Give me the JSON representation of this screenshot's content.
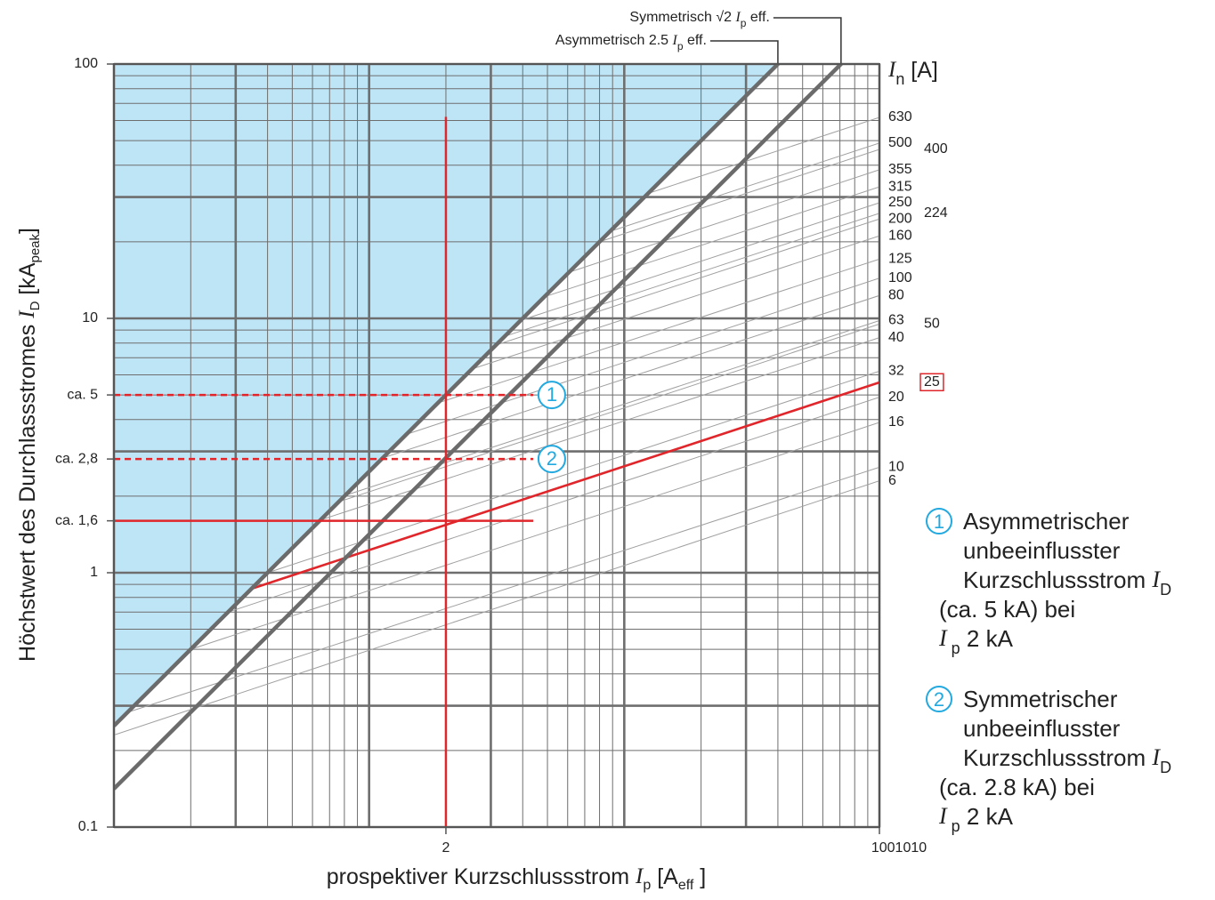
{
  "chart_data": {
    "type": "loglog",
    "y_label": [
      "Höchstwert des Durchlassstromes ",
      {
        "text": "I",
        "style": "italic"
      },
      {
        "text": "D",
        "style": "sub"
      },
      " [kA",
      {
        "text": "peak",
        "style": "sub"
      },
      "]"
    ],
    "x_label": [
      "prospektiver Kurzschlussstrom ",
      {
        "text": "I",
        "style": "italic"
      },
      {
        "text": "p",
        "style": "sub"
      },
      " [A",
      {
        "text": "eff",
        "style": "sub"
      },
      " ]"
    ],
    "right_label": [
      {
        "text": "I",
        "style": "italic"
      },
      {
        "text": "n",
        "style": "sub"
      },
      " [A]"
    ],
    "xlim": [
      0.1,
      100
    ],
    "ylim": [
      0.1,
      100
    ],
    "log_scale": true,
    "xticks": [
      2,
      {
        "value": 100,
        "label": "1001010"
      }
    ],
    "yticks": [
      100,
      10,
      1,
      0.1,
      {
        "value": 5,
        "label": "ca. 5"
      },
      {
        "value": 2.8,
        "label": "ca. 2,8"
      },
      {
        "value": 1.6,
        "label": "ca. 1,6"
      }
    ],
    "xgrid": [
      0.1,
      0.2,
      0.3,
      0.4,
      0.5,
      0.6,
      0.7,
      0.8,
      0.9,
      1,
      2,
      3,
      4,
      5,
      6,
      7,
      8,
      9,
      10,
      20,
      30,
      40,
      50,
      60,
      70,
      80,
      90,
      100
    ],
    "ygrid": [
      0.1,
      0.2,
      0.3,
      0.4,
      0.5,
      0.6,
      0.7,
      0.8,
      0.9,
      1,
      2,
      3,
      4,
      5,
      6,
      7,
      8,
      9,
      10,
      20,
      30,
      40,
      50,
      60,
      70,
      80,
      90,
      100
    ],
    "reference_lines": [
      {
        "label": [
          "Symmetrisch ",
          "√2 ",
          {
            "text": "I",
            "style": "italic"
          },
          {
            "text": "p",
            "style": "sub"
          },
          " eff."
        ],
        "factor": 1.41421,
        "color": "#6b6b6b"
      },
      {
        "label": [
          "Asymmetrisch ",
          "2.5 ",
          {
            "text": "I",
            "style": "italic"
          },
          {
            "text": "p",
            "style": "sub"
          },
          " eff."
        ],
        "factor": 2.5,
        "color": "#6b6b6b",
        "fill_above": "#bde5f6"
      }
    ],
    "series": [
      {
        "name": "630",
        "color": "#a0a0a0",
        "x": [
          12.4,
          100
        ],
        "values": [
          31,
          61.7
        ]
      },
      {
        "name": "500",
        "color": "#a0a0a0",
        "x": [
          8.7,
          100
        ],
        "values": [
          21.9,
          48.9
        ]
      },
      {
        "name": "400",
        "color": "#a0a0a0",
        "x": [
          8.0,
          100
        ],
        "values": [
          20,
          46.2
        ]
      },
      {
        "name": "355",
        "color": "#a0a0a0",
        "x": [
          6.1,
          100
        ],
        "values": [
          15.2,
          38.4
        ]
      },
      {
        "name": "315",
        "color": "#a0a0a0",
        "x": [
          4.8,
          100
        ],
        "values": [
          12.1,
          32.9
        ]
      },
      {
        "name": "250",
        "color": "#a0a0a0",
        "x": [
          3.9,
          100
        ],
        "values": [
          9.8,
          28.5
        ]
      },
      {
        "name": "224",
        "color": "#a0a0a0",
        "x": [
          3.4,
          100
        ],
        "values": [
          8.5,
          25.9
        ]
      },
      {
        "name": "200",
        "color": "#a0a0a0",
        "x": [
          3.2,
          100
        ],
        "values": [
          7.9,
          24.6
        ]
      },
      {
        "name": "160",
        "color": "#a0a0a0",
        "x": [
          2.5,
          100
        ],
        "values": [
          6.3,
          21.1
        ]
      },
      {
        "name": "125",
        "color": "#a0a0a0",
        "x": [
          1.8,
          100
        ],
        "values": [
          4.6,
          17.1
        ]
      },
      {
        "name": "100",
        "color": "#a0a0a0",
        "x": [
          1.4,
          100
        ],
        "values": [
          3.5,
          14.4
        ]
      },
      {
        "name": "80",
        "color": "#a0a0a0",
        "x": [
          1.1,
          100
        ],
        "values": [
          2.8,
          12.3
        ]
      },
      {
        "name": "63",
        "color": "#a0a0a0",
        "x": [
          0.79,
          100
        ],
        "values": [
          2.0,
          9.8
        ]
      },
      {
        "name": "50",
        "color": "#a0a0a0",
        "x": [
          0.76,
          100
        ],
        "values": [
          1.9,
          9.5
        ]
      },
      {
        "name": "40",
        "color": "#a0a0a0",
        "x": [
          0.63,
          100
        ],
        "values": [
          1.6,
          8.4
        ]
      },
      {
        "name": "32",
        "color": "#a0a0a0",
        "x": [
          0.4,
          100
        ],
        "values": [
          1.0,
          6.2
        ]
      },
      {
        "name": "25",
        "color": "#e0262b",
        "x": [
          0.34,
          100
        ],
        "values": [
          0.86,
          5.6
        ],
        "boxed": true
      },
      {
        "name": "20",
        "color": "#a0a0a0",
        "x": [
          0.28,
          100
        ],
        "values": [
          0.7,
          4.9
        ]
      },
      {
        "name": "16",
        "color": "#a0a0a0",
        "x": [
          0.2,
          100
        ],
        "values": [
          0.5,
          3.9
        ]
      },
      {
        "name": "10",
        "color": "#a0a0a0",
        "x": [
          0.11,
          100
        ],
        "values": [
          0.28,
          2.6
        ]
      },
      {
        "name": "6",
        "color": "#a0a0a0",
        "x": [
          0.1,
          100
        ],
        "values": [
          0.23,
          2.3
        ]
      }
    ],
    "guides": [
      {
        "orientation": "vertical",
        "at": 2,
        "from": 0.1,
        "to": 62,
        "dashed": false,
        "color": "#e0262b"
      },
      {
        "orientation": "horizontal",
        "at": 1.6,
        "from": 0.1,
        "to": 4.4,
        "dashed": false,
        "color": "#e0262b"
      },
      {
        "orientation": "horizontal",
        "at": 5,
        "from": 0.1,
        "to": 4.4,
        "dashed": true,
        "color": "#e0262b"
      },
      {
        "orientation": "horizontal",
        "at": 2.8,
        "from": 0.1,
        "to": 4.4,
        "dashed": true,
        "color": "#e0262b"
      }
    ],
    "markers": [
      {
        "label": "1",
        "x": 5.2,
        "y": 5
      },
      {
        "label": "2",
        "x": 5.2,
        "y": 2.8
      }
    ],
    "marker_color": "#22a9e0",
    "notes": [
      {
        "marker": "1",
        "lines": [
          [
            "Asymmetrischer"
          ],
          [
            "unbeeinflusster"
          ],
          [
            "Kurzschlussstrom ",
            {
              "text": "I",
              "style": "italic"
            },
            {
              "text": "D",
              "style": "sub"
            }
          ],
          [
            "(ca. 5 kA) bei"
          ],
          [
            {
              "text": "I",
              "style": "italic"
            },
            {
              "text": "  p",
              "style": "sub"
            },
            " 2 kA"
          ]
        ]
      },
      {
        "marker": "2",
        "lines": [
          [
            "Symmetrischer"
          ],
          [
            "unbeeinflusster"
          ],
          [
            "Kurzschlussstrom ",
            {
              "text": "I",
              "style": "italic"
            },
            {
              "text": "D",
              "style": "sub"
            }
          ],
          [
            "(ca. 2.8 kA) bei"
          ],
          [
            {
              "text": "I",
              "style": "italic"
            },
            {
              "text": "  p",
              "style": "sub"
            },
            " 2 kA"
          ]
        ]
      }
    ]
  }
}
